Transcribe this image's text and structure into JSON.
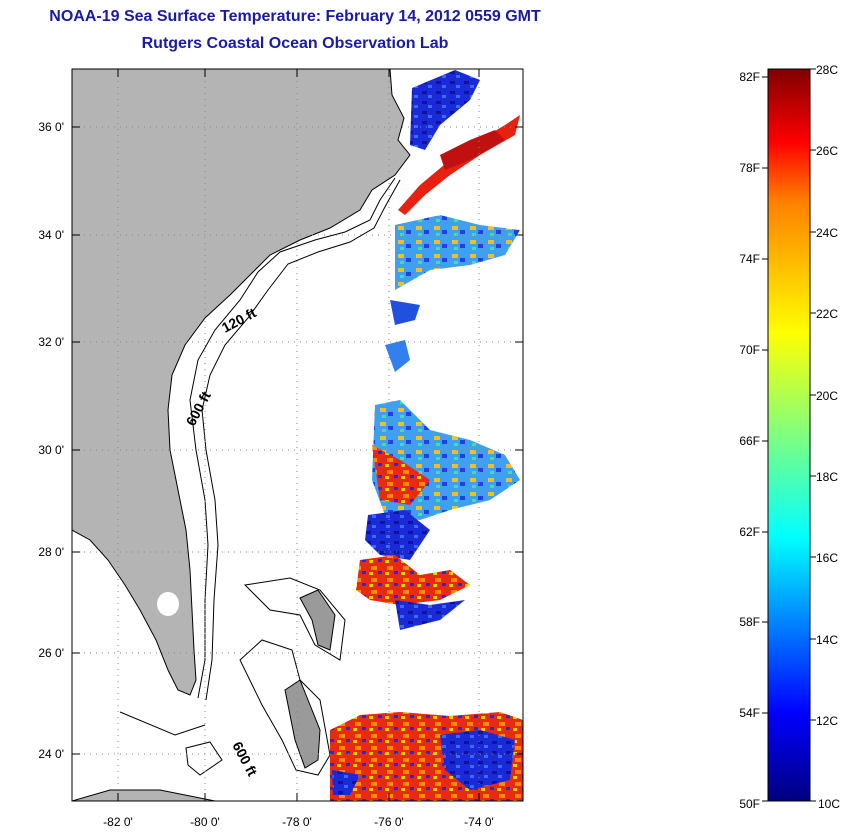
{
  "title": {
    "line1": "NOAA-19 Sea Surface Temperature:  February 14, 2012 0559 GMT",
    "line2": "Rutgers Coastal Ocean Observation Lab"
  },
  "map": {
    "lat_labels": [
      "36 0'",
      "34 0'",
      "32 0'",
      "30 0'",
      "28 0'",
      "26 0'",
      "24 0'"
    ],
    "lon_labels": [
      "-82 0'",
      "-80 0'",
      "-78 0'",
      "-76 0'",
      "-74 0'"
    ],
    "contour_labels": [
      "120 ft",
      "600 ft",
      "600 ft"
    ],
    "land_color": "#b4b4b4"
  },
  "colorbar": {
    "f_labels": [
      "82F",
      "78F",
      "74F",
      "70F",
      "66F",
      "62F",
      "58F",
      "54F",
      "50F"
    ],
    "c_labels": [
      "28C",
      "26C",
      "24C",
      "22C",
      "20C",
      "18C",
      "16C",
      "14C",
      "12C",
      "10C"
    ],
    "colors": [
      "#00007f",
      "#0000ff",
      "#007fff",
      "#00ffff",
      "#7fff7f",
      "#ffff00",
      "#ff7f00",
      "#ff0000",
      "#7f0000"
    ]
  }
}
